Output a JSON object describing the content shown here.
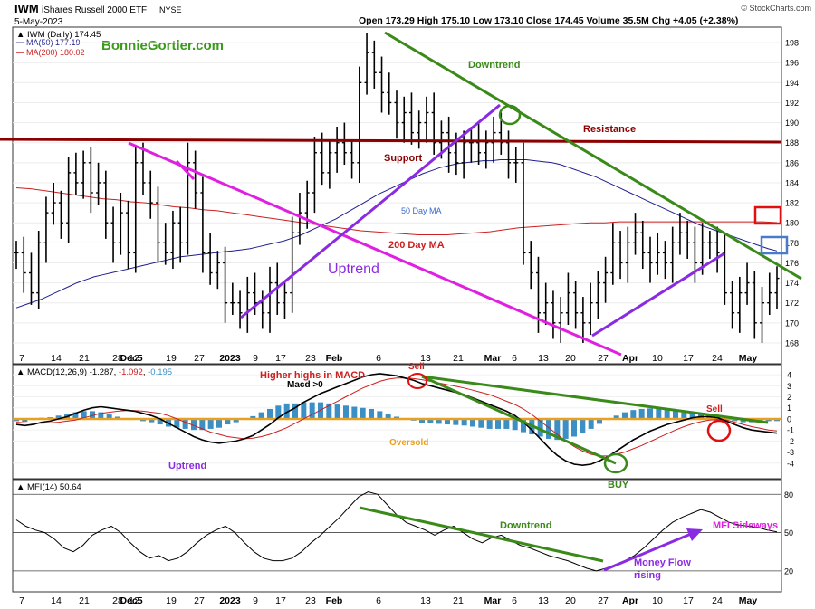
{
  "header": {
    "symbol": "IWM",
    "name": "iShares Russell 2000 ETF",
    "exchange": "NYSE",
    "date": "5-May-2023",
    "ohlc": "Open 173.29  High 175.10  Low 173.10  Close 174.45  Volume 35.5M  Chg +4.05 (+2.38%)",
    "source": "© StockCharts.com",
    "watermark": "BonnieGortler.com"
  },
  "legend": {
    "price": "IWM (Daily) 174.45",
    "ma50": "MA(50) 177.19",
    "ma200": "MA(200) 180.02",
    "macd_prefix": "MACD(12,26,9)",
    "macd_v1": "-1.287",
    "macd_v2": "-1.092",
    "macd_v3": "-0.195",
    "mfi": "MFI(14) 50.64"
  },
  "colors": {
    "ma50": "#1f1f8f",
    "ma200": "#cc1f1f",
    "trend_green": "#3a8a1a",
    "uptrend_purple": "#8a2be2",
    "magenta": "#e020e0",
    "resistance": "#8b0000",
    "macd_hist": "#3b8fc4",
    "zero_line": "#e8a020"
  },
  "annotations": {
    "downtrend": "Downtrend",
    "resistance": "Resistance",
    "support": "Support",
    "ma50": "50 Day MA",
    "ma200": "200 Day MA",
    "uptrend": "Uptrend",
    "higher_highs": "Higher highs in MACD",
    "sell1": "Sell",
    "macd_gt0": "Macd  >0",
    "sell2": "Sell",
    "oversold": "Oversold",
    "macd_uptrend": "Uptrend",
    "buy": "BUY",
    "mfi_downtrend": "Downtrend",
    "mfi_sideways": "MFI Sideways",
    "money_flow_1": "Money Flow",
    "money_flow_2": "rising"
  },
  "x_axis_labels": [
    "7",
    "14",
    "21",
    "28",
    "Dec5",
    "12",
    "19",
    "27",
    "2023",
    "9",
    "17",
    "23",
    "Feb",
    "6",
    "13",
    "21",
    "Mar",
    "6",
    "13",
    "20",
    "27",
    "Apr",
    "10",
    "17",
    "24",
    "May"
  ],
  "chart_data": [
    {
      "type": "bar",
      "title": "IWM (Daily)",
      "subtype": "ohlc",
      "ylim": [
        167,
        199
      ],
      "yticks": [
        168,
        170,
        172,
        174,
        176,
        178,
        180,
        182,
        184,
        186,
        188,
        190,
        192,
        194,
        196,
        198
      ],
      "close": [
        177,
        175,
        173,
        178,
        181,
        182,
        180,
        185,
        184,
        186,
        183,
        184,
        180,
        178,
        181,
        177,
        186,
        184,
        182,
        178,
        177,
        180,
        178,
        186,
        183,
        177,
        175,
        176,
        172,
        172,
        171,
        173,
        172,
        171,
        174,
        172,
        173,
        179,
        181,
        183,
        187,
        185,
        187,
        188,
        187,
        186,
        194,
        197,
        195,
        193,
        192,
        190,
        191,
        189,
        190,
        191,
        188,
        189,
        187,
        186,
        188,
        188,
        187,
        188,
        189,
        188,
        186,
        186,
        177,
        175,
        171,
        172,
        170,
        171,
        173,
        171,
        170,
        172,
        174,
        175,
        178,
        176,
        178,
        179,
        177,
        176,
        177,
        176,
        178,
        179,
        178,
        176,
        178,
        178,
        177,
        173,
        171,
        173,
        174,
        170,
        172,
        173,
        174.45
      ],
      "ma50": [
        171.5,
        171.8,
        172.1,
        172.4,
        172.8,
        173.2,
        173.6,
        174,
        174.3,
        174.6,
        174.8,
        175,
        175.2,
        175.4,
        175.6,
        175.8,
        176,
        176.2,
        176.4,
        176.6,
        176.7,
        176.8,
        176.9,
        177,
        177.1,
        177.2,
        177.3,
        177.4,
        177.6,
        177.8,
        178,
        178.2,
        178.5,
        178.8,
        179.2,
        179.6,
        180,
        180.4,
        180.9,
        181.4,
        181.9,
        182.4,
        182.9,
        183.3,
        183.7,
        184.1,
        184.5,
        184.9,
        185.2,
        185.5,
        185.7,
        185.9,
        186,
        186.1,
        186.2,
        186.2,
        186.3,
        186.3,
        186.3,
        186.3,
        186.2,
        186.1,
        186,
        185.8,
        185.5,
        185.2,
        184.9,
        184.6,
        184.2,
        183.8,
        183.4,
        183,
        182.6,
        182.2,
        181.8,
        181.4,
        181,
        180.6,
        180.2,
        179.8,
        179.5,
        179.2,
        178.9,
        178.6,
        178.3,
        178,
        177.7,
        177.4,
        177.19
      ],
      "ma200": [
        183.5,
        183.4,
        183.2,
        183,
        182.8,
        182.6,
        182.4,
        182.3,
        182.1,
        182,
        181.8,
        181.6,
        181.5,
        181.3,
        181.2,
        181,
        180.8,
        180.6,
        180.4,
        180.2,
        180,
        179.8,
        179.6,
        179.4,
        179.2,
        179.1,
        179,
        178.9,
        178.8,
        178.8,
        178.8,
        178.9,
        179,
        179.1,
        179.3,
        179.5,
        179.6,
        179.7,
        179.8,
        179.9,
        180,
        180,
        180.1,
        180.1,
        180.1,
        180.1,
        180.1,
        180.1,
        180.1,
        180.1,
        180.1,
        180.1,
        180.1,
        180.02
      ]
    },
    {
      "type": "line",
      "title": "MACD(12,26,9)",
      "ylim": [
        -5,
        4.5
      ],
      "yticks": [
        -4,
        -3,
        -2,
        -1,
        0,
        1,
        2,
        3,
        4
      ],
      "macd": [
        -0.5,
        -0.6,
        -0.5,
        -0.3,
        -0.2,
        0,
        0.2,
        0.5,
        0.8,
        1,
        1.1,
        1,
        0.9,
        0.8,
        0.7,
        0.5,
        0.3,
        0,
        -0.4,
        -0.8,
        -1.2,
        -1.6,
        -1.9,
        -2.1,
        -2.2,
        -2.1,
        -2,
        -1.8,
        -1.5,
        -1,
        -0.5,
        0.1,
        0.6,
        1,
        1.5,
        1.9,
        2.3,
        2.6,
        2.9,
        3.2,
        3.5,
        3.8,
        4,
        4.1,
        4,
        3.9,
        3.7,
        3.5,
        3.2,
        3,
        2.8,
        2.6,
        2.4,
        2.2,
        1.9,
        1.6,
        1.3,
        1,
        0.7,
        0.3,
        -0.3,
        -1,
        -1.8,
        -2.6,
        -3.3,
        -3.8,
        -4.1,
        -4.2,
        -4.1,
        -3.8,
        -3.4,
        -2.9,
        -2.4,
        -1.9,
        -1.5,
        -1.1,
        -0.8,
        -0.5,
        -0.3,
        -0.1,
        0.1,
        0.2,
        0.2,
        0.1,
        -0.2,
        -0.5,
        -0.8,
        -1,
        -1.1,
        -1.2,
        -1.287
      ],
      "signal": [
        -0.3,
        -0.35,
        -0.4,
        -0.4,
        -0.35,
        -0.3,
        -0.2,
        -0.1,
        0.1,
        0.3,
        0.5,
        0.6,
        0.7,
        0.75,
        0.75,
        0.7,
        0.6,
        0.5,
        0.3,
        0,
        -0.3,
        -0.6,
        -0.9,
        -1.2,
        -1.4,
        -1.6,
        -1.7,
        -1.8,
        -1.75,
        -1.6,
        -1.4,
        -1.1,
        -0.8,
        -0.4,
        0,
        0.4,
        0.8,
        1.2,
        1.6,
        2,
        2.4,
        2.8,
        3.1,
        3.4,
        3.6,
        3.7,
        3.7,
        3.65,
        3.55,
        3.4,
        3.25,
        3.1,
        2.95,
        2.8,
        2.6,
        2.4,
        2.2,
        1.9,
        1.6,
        1.3,
        0.9,
        0.4,
        -0.2,
        -0.8,
        -1.4,
        -2,
        -2.5,
        -2.9,
        -3.2,
        -3.35,
        -3.35,
        -3.2,
        -3,
        -2.7,
        -2.4,
        -2.05,
        -1.7,
        -1.35,
        -1,
        -0.7,
        -0.45,
        -0.25,
        -0.1,
        -0.05,
        -0.1,
        -0.3,
        -0.5,
        -0.7,
        -0.85,
        -1,
        -1.092
      ]
    },
    {
      "type": "line",
      "title": "MFI(14)",
      "ylim": [
        5,
        88
      ],
      "yticks": [
        20,
        50,
        80
      ],
      "values": [
        60,
        55,
        52,
        50,
        45,
        38,
        35,
        40,
        48,
        52,
        55,
        50,
        42,
        35,
        30,
        32,
        28,
        30,
        35,
        42,
        48,
        52,
        55,
        50,
        42,
        35,
        30,
        28,
        28,
        30,
        35,
        42,
        48,
        55,
        62,
        70,
        78,
        82,
        80,
        72,
        64,
        58,
        55,
        52,
        48,
        52,
        55,
        50,
        45,
        42,
        46,
        48,
        44,
        40,
        38,
        35,
        32,
        30,
        28,
        25,
        22,
        20,
        22,
        25,
        28,
        32,
        38,
        45,
        52,
        58,
        62,
        65,
        68,
        66,
        62,
        58,
        56,
        55,
        54,
        52,
        50.64
      ]
    }
  ]
}
